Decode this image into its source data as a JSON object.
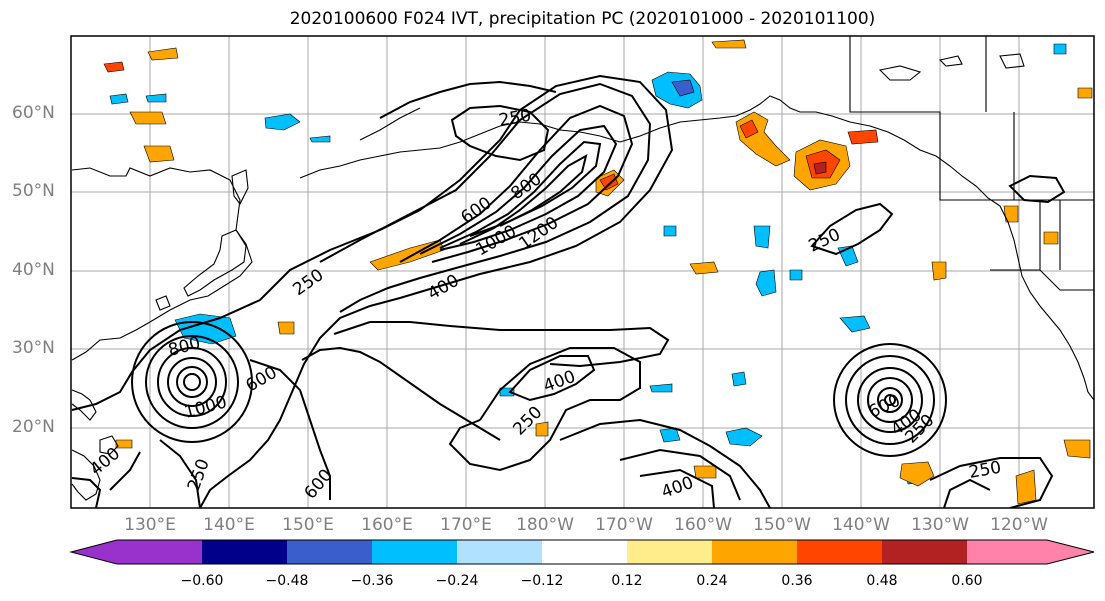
{
  "title": "2020100600 F024 IVT, precipitation PC (2020101000 - 2020101100)",
  "lat_labels": [
    "60°N",
    "50°N",
    "40°N",
    "30°N",
    "20°N"
  ],
  "lon_labels": [
    "130°E",
    "140°E",
    "150°E",
    "160°E",
    "170°E",
    "180°W",
    "170°W",
    "160°W",
    "150°W",
    "140°W",
    "130°W",
    "120°W"
  ],
  "colorbar": {
    "ticks": [
      "−0.60",
      "−0.48",
      "−0.36",
      "−0.24",
      "−0.12",
      "0.12",
      "0.24",
      "0.36",
      "0.48",
      "0.60"
    ],
    "colors": [
      "#9932cc",
      "#00008b",
      "#3a5fcd",
      "#00bfff",
      "#b0e2ff",
      "#ffffff",
      "#ffec8b",
      "#ffa500",
      "#ff4500",
      "#b22222",
      "#ff82ab"
    ]
  },
  "contour_labels": [
    {
      "text": "250"
    },
    {
      "text": "600"
    },
    {
      "text": "800"
    },
    {
      "text": "1000"
    },
    {
      "text": "1200"
    },
    {
      "text": "400"
    },
    {
      "text": "250"
    },
    {
      "text": "400"
    },
    {
      "text": "800"
    },
    {
      "text": "600"
    },
    {
      "text": "1000"
    },
    {
      "text": "400"
    },
    {
      "text": "250"
    },
    {
      "text": "600"
    },
    {
      "text": "400"
    },
    {
      "text": "250"
    },
    {
      "text": "600"
    },
    {
      "text": "400"
    },
    {
      "text": "250"
    },
    {
      "text": "250"
    },
    {
      "text": "250"
    }
  ],
  "colors": {
    "gray_text": "#7f7f7f",
    "grid": "#a9a9a9"
  }
}
